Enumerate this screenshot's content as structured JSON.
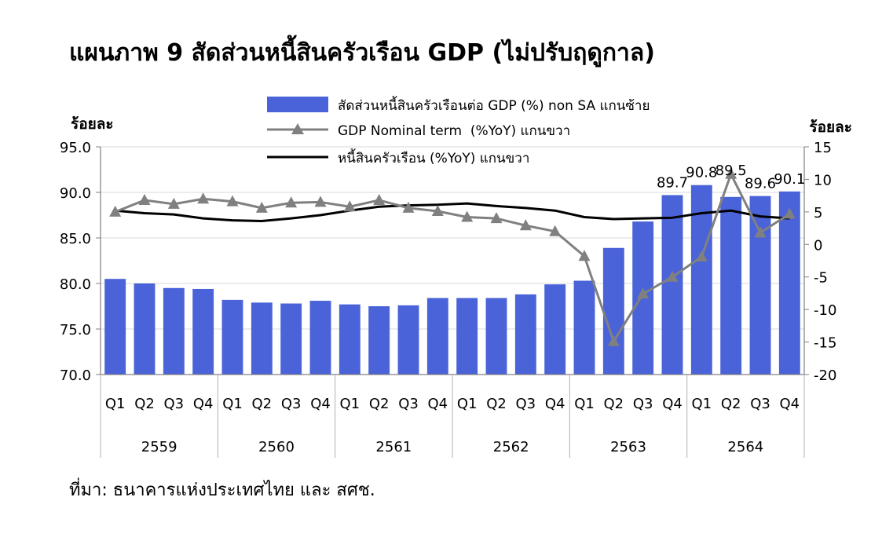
{
  "title": "แผนภาพ  9  สัดส่วนหนี้สินครัวเรือน GDP (ไม่ปรับฤดูกาล)",
  "source": "ที่มา: ธนาคารแห่งประเทศไทย และ สศช.",
  "chart_data": {
    "type": "bar",
    "left_axis_label": "ร้อยละ",
    "right_axis_label": "ร้อยละ",
    "ylim_left": [
      70,
      95
    ],
    "yticks_left": [
      "70.0",
      "75.0",
      "80.0",
      "85.0",
      "90.0",
      "95.0"
    ],
    "ylim_right": [
      -20,
      15
    ],
    "yticks_right": [
      "-20",
      "-15",
      "-10",
      "-5",
      "0",
      "5",
      "10",
      "15"
    ],
    "quarters": [
      "Q1",
      "Q2",
      "Q3",
      "Q4",
      "Q1",
      "Q2",
      "Q3",
      "Q4",
      "Q1",
      "Q2",
      "Q3",
      "Q4",
      "Q1",
      "Q2",
      "Q3",
      "Q4",
      "Q1",
      "Q2",
      "Q3",
      "Q4",
      "Q1",
      "Q2",
      "Q3",
      "Q4"
    ],
    "years": [
      "2559",
      "2560",
      "2561",
      "2562",
      "2563",
      "2564"
    ],
    "series": [
      {
        "name": "สัดส่วนหนี้สินครัวเรือนต่อ GDP (%) non SA แกนซ้าย",
        "kind": "bar",
        "axis": "left",
        "color": "#4a63d8",
        "values": [
          80.5,
          80.0,
          79.5,
          79.4,
          78.2,
          77.9,
          77.8,
          78.1,
          77.7,
          77.5,
          77.6,
          78.4,
          78.4,
          78.4,
          78.8,
          79.9,
          80.3,
          83.9,
          86.8,
          89.7,
          90.8,
          89.5,
          89.6,
          90.1
        ]
      },
      {
        "name": "GDP Nominal term  (%YoY) แกนขวา",
        "kind": "line-triangle",
        "axis": "right",
        "color": "#808080",
        "values": [
          5.0,
          6.8,
          6.2,
          7.0,
          6.6,
          5.6,
          6.4,
          6.5,
          5.8,
          6.8,
          5.6,
          5.1,
          4.2,
          4.0,
          2.9,
          2.0,
          -1.8,
          -14.9,
          -7.6,
          -5.0,
          -1.9,
          10.8,
          1.8,
          4.7
        ]
      },
      {
        "name": "หนี้สินครัวเรือน (%YoY) แกนขวา",
        "kind": "line",
        "axis": "right",
        "color": "#000000",
        "values": [
          5.2,
          4.8,
          4.6,
          4.0,
          3.7,
          3.6,
          4.0,
          4.5,
          5.2,
          5.8,
          6.0,
          6.1,
          6.3,
          5.9,
          5.6,
          5.2,
          4.2,
          3.9,
          4.0,
          4.1,
          4.8,
          5.2,
          4.3,
          4.0
        ]
      }
    ],
    "data_labels": [
      {
        "index": 19,
        "text": "89.7"
      },
      {
        "index": 20,
        "text": "90.8"
      },
      {
        "index": 21,
        "text": "89.5"
      },
      {
        "index": 22,
        "text": "89.6"
      },
      {
        "index": 23,
        "text": "90.1"
      }
    ],
    "legend_position": "top-center"
  }
}
